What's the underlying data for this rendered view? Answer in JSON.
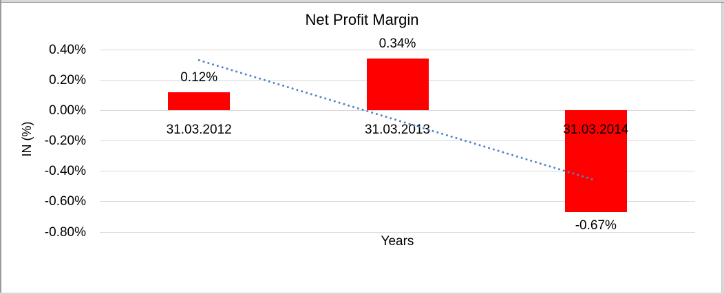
{
  "window": {
    "background": "#FFFFFF",
    "frame_strip_color": "#D9D9D9",
    "frame_line_color": "#9B9B9B"
  },
  "chart_data": {
    "type": "bar",
    "title": "Net Profit Margin",
    "xlabel": "Years",
    "ylabel": "IN (%)",
    "categories": [
      "31.03.2012",
      "31.03.2013",
      "31.03.2014"
    ],
    "values": [
      0.12,
      0.34,
      -0.67
    ],
    "data_labels": [
      "0.12%",
      "0.34%",
      "-0.67%"
    ],
    "y_tick_labels": [
      "0.40%",
      "0.20%",
      "0.00%",
      "-0.20%",
      "-0.40%",
      "-0.60%",
      "-0.80%"
    ],
    "y_tick_values": [
      0.4,
      0.2,
      0.0,
      -0.2,
      -0.4,
      -0.6,
      -0.8
    ],
    "ylim": [
      -0.8,
      0.4
    ],
    "grid": true,
    "legend": "none",
    "bar_color": "#FF0000",
    "gridline_color": "#D9D9D9",
    "label_color": "#000000",
    "trendline": {
      "type": "linear",
      "style": "dotted",
      "color": "#4F86C6",
      "start_value": 0.33,
      "end_value": -0.46
    }
  }
}
